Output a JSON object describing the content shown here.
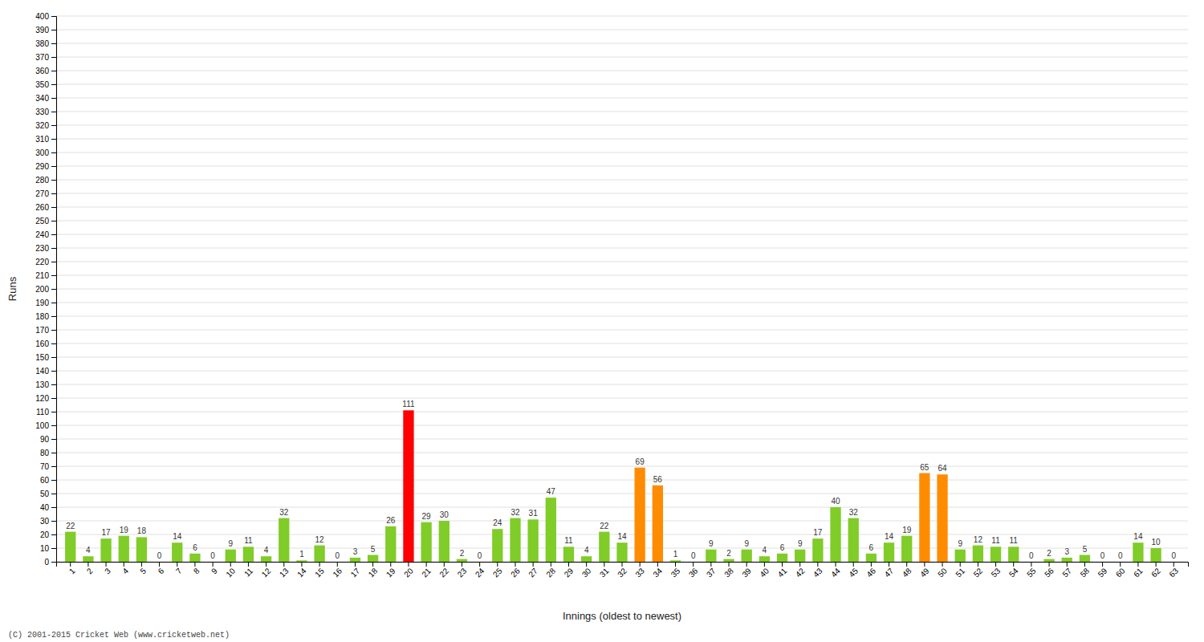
{
  "chart_data": {
    "type": "bar",
    "xlabel": "Innings (oldest to newest)",
    "ylabel": "Runs",
    "categories": [
      "1",
      "2",
      "3",
      "4",
      "5",
      "6",
      "7",
      "8",
      "9",
      "10",
      "11",
      "12",
      "13",
      "14",
      "15",
      "16",
      "17",
      "18",
      "19",
      "20",
      "21",
      "22",
      "23",
      "24",
      "25",
      "26",
      "27",
      "28",
      "29",
      "30",
      "31",
      "32",
      "33",
      "34",
      "35",
      "36",
      "37",
      "38",
      "39",
      "40",
      "41",
      "42",
      "43",
      "44",
      "45",
      "46",
      "47",
      "48",
      "49",
      "50",
      "51",
      "52",
      "53",
      "54",
      "55",
      "56",
      "57",
      "58",
      "59",
      "60",
      "61",
      "62",
      "63"
    ],
    "values": [
      22,
      4,
      17,
      19,
      18,
      0,
      14,
      6,
      0,
      9,
      11,
      4,
      32,
      1,
      12,
      0,
      3,
      5,
      26,
      111,
      29,
      30,
      2,
      0,
      24,
      32,
      31,
      47,
      11,
      4,
      22,
      14,
      69,
      56,
      1,
      0,
      9,
      2,
      9,
      4,
      6,
      9,
      17,
      40,
      32,
      6,
      14,
      19,
      65,
      64,
      9,
      12,
      11,
      11,
      0,
      2,
      3,
      5,
      0,
      0,
      14,
      10,
      0
    ],
    "colors": [
      "#80cc28",
      "#80cc28",
      "#80cc28",
      "#80cc28",
      "#80cc28",
      "#80cc28",
      "#80cc28",
      "#80cc28",
      "#80cc28",
      "#80cc28",
      "#80cc28",
      "#80cc28",
      "#80cc28",
      "#80cc28",
      "#80cc28",
      "#80cc28",
      "#80cc28",
      "#80cc28",
      "#80cc28",
      "#ff0000",
      "#80cc28",
      "#80cc28",
      "#80cc28",
      "#80cc28",
      "#80cc28",
      "#80cc28",
      "#80cc28",
      "#80cc28",
      "#80cc28",
      "#80cc28",
      "#80cc28",
      "#80cc28",
      "#ff8c00",
      "#ff8c00",
      "#80cc28",
      "#80cc28",
      "#80cc28",
      "#80cc28",
      "#80cc28",
      "#80cc28",
      "#80cc28",
      "#80cc28",
      "#80cc28",
      "#80cc28",
      "#80cc28",
      "#80cc28",
      "#80cc28",
      "#80cc28",
      "#ff8c00",
      "#ff8c00",
      "#80cc28",
      "#80cc28",
      "#80cc28",
      "#80cc28",
      "#80cc28",
      "#80cc28",
      "#80cc28",
      "#80cc28",
      "#80cc28",
      "#80cc28",
      "#80cc28",
      "#80cc28",
      "#80cc28"
    ],
    "ylim": [
      0,
      400
    ],
    "yticks": [
      0,
      10,
      20,
      30,
      40,
      50,
      60,
      70,
      80,
      90,
      100,
      110,
      120,
      130,
      140,
      150,
      160,
      170,
      180,
      190,
      200,
      210,
      220,
      230,
      240,
      250,
      260,
      270,
      280,
      290,
      300,
      310,
      320,
      330,
      340,
      350,
      360,
      370,
      380,
      390,
      400
    ],
    "grid": true,
    "data_labels": true,
    "annotations": [
      "(C) 2001-2015 Cricket Web (www.cricketweb.net)"
    ]
  }
}
